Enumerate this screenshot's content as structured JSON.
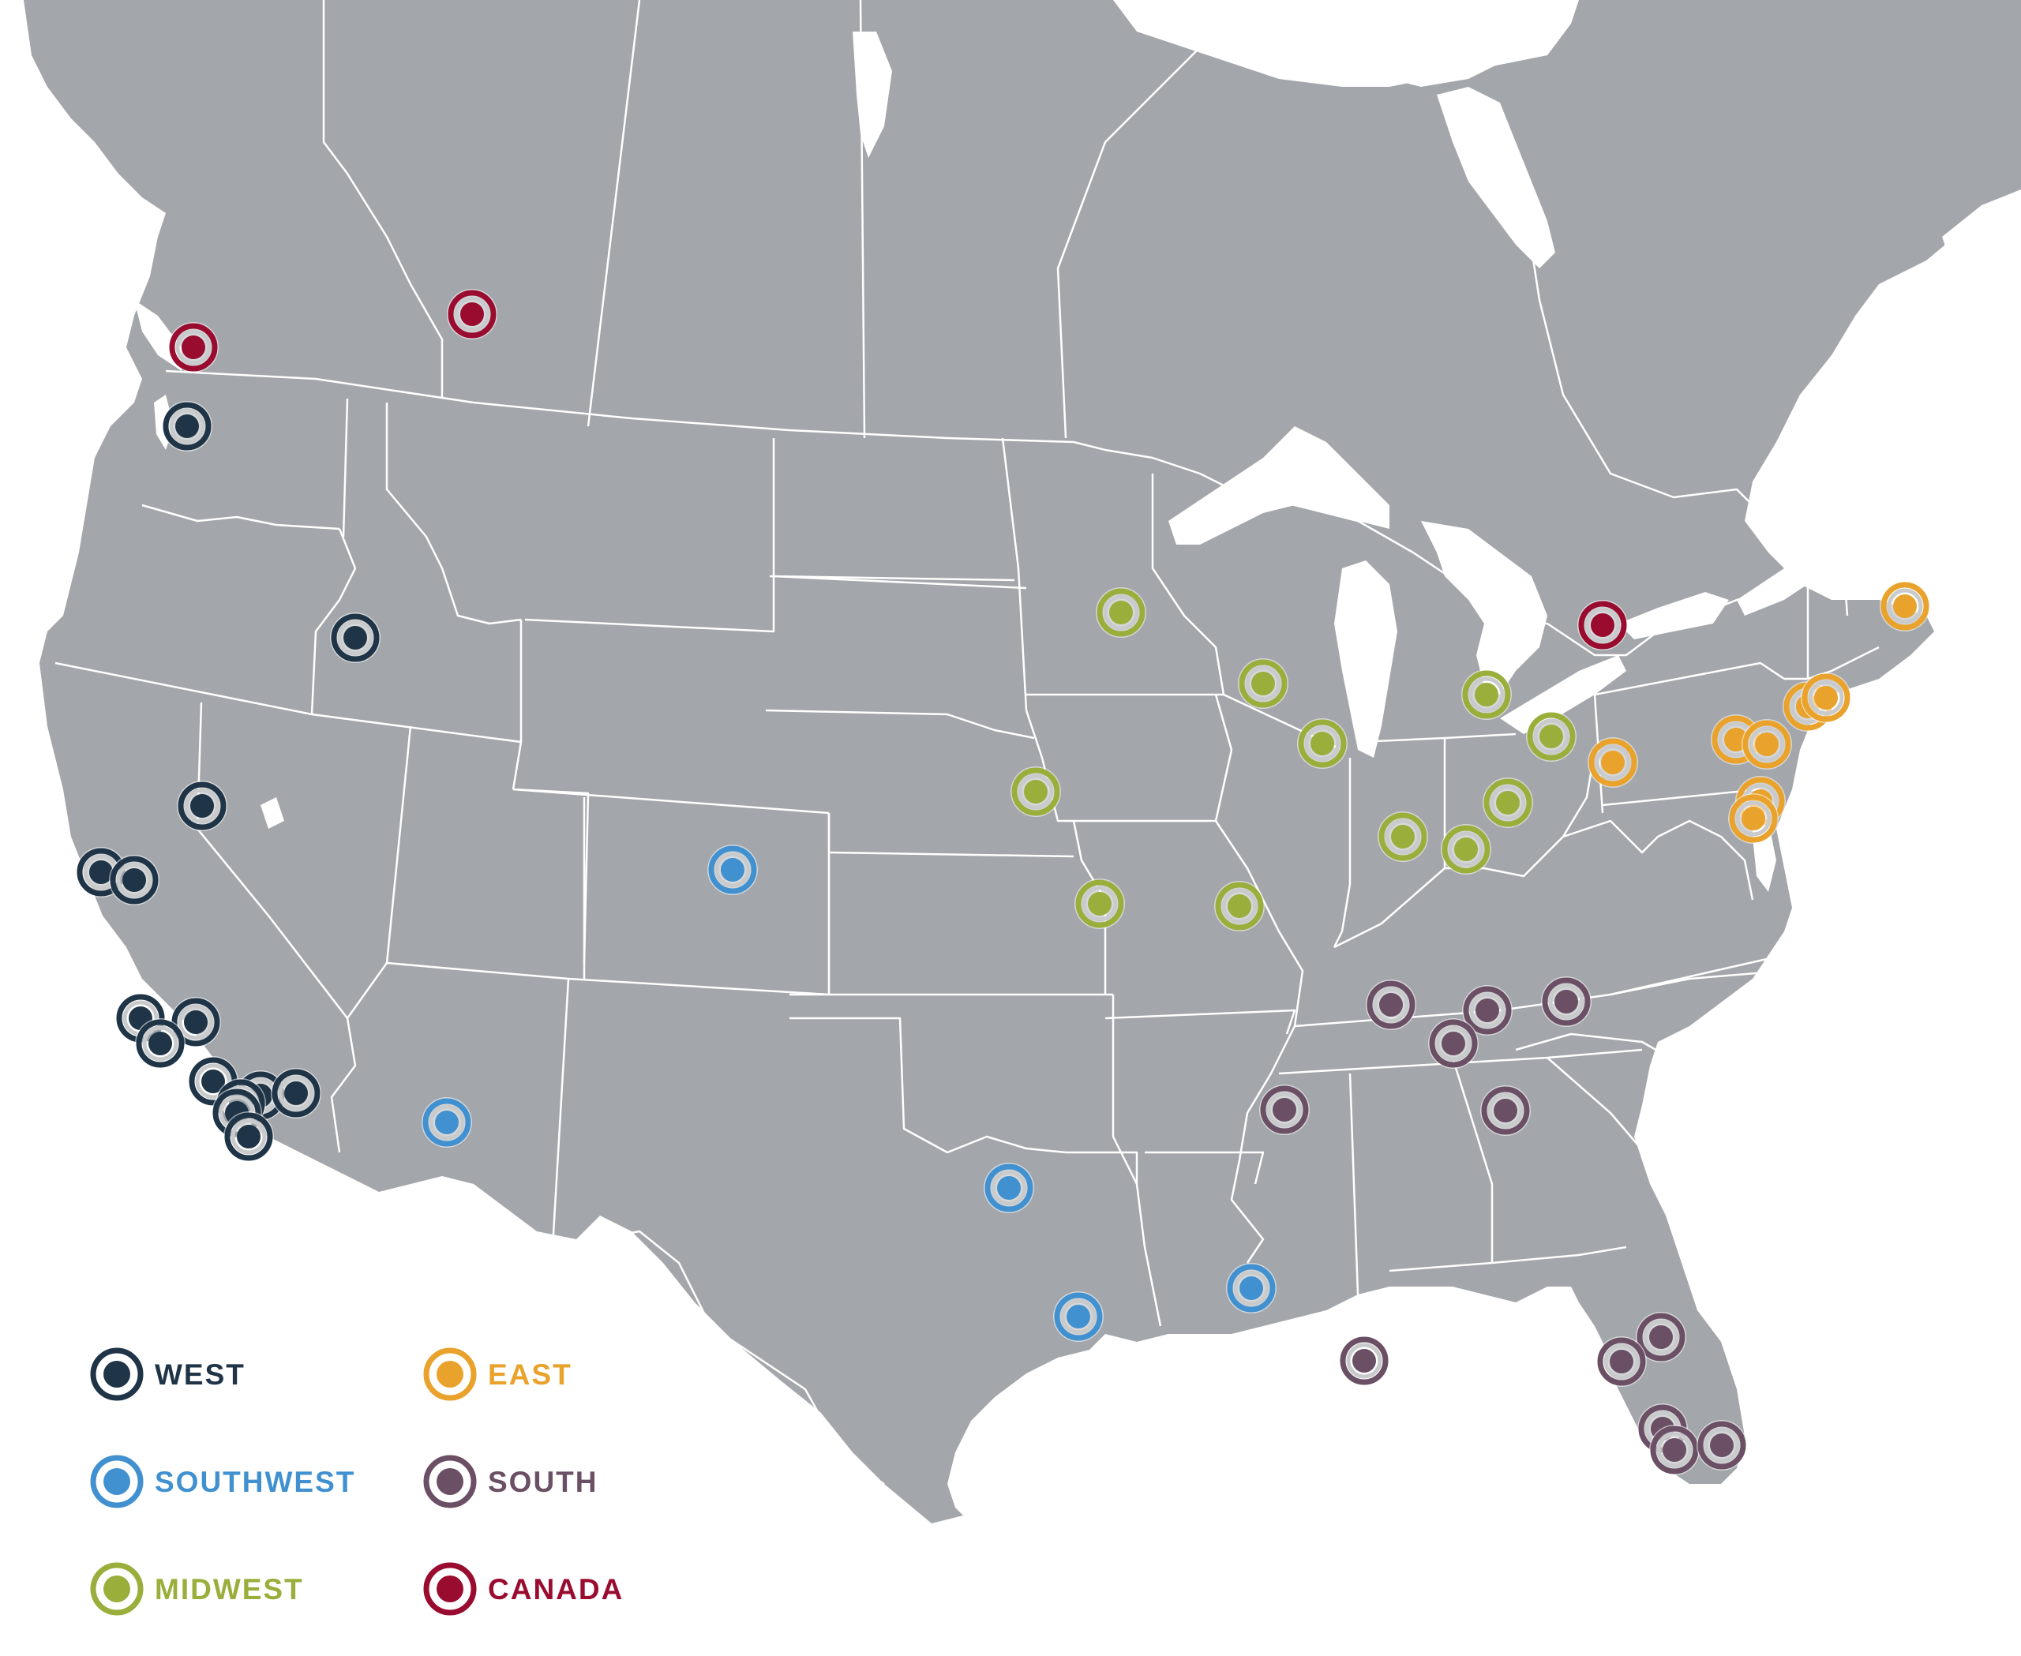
{
  "colors": {
    "land": "#a3a6aa",
    "water": "#ffffff",
    "border": "#ffffff"
  },
  "regions": [
    {
      "key": "west",
      "label": "WEST",
      "color": "#1f3446",
      "icon": "dark-navy-ring-marker-icon"
    },
    {
      "key": "east",
      "label": "EAST",
      "color": "#e9a22b",
      "icon": "orange-ring-marker-icon"
    },
    {
      "key": "southwest",
      "label": "SOUTHWEST",
      "color": "#4191d1",
      "icon": "blue-ring-marker-icon"
    },
    {
      "key": "south",
      "label": "SOUTH",
      "color": "#6b5065",
      "icon": "mauve-ring-marker-icon"
    },
    {
      "key": "midwest",
      "label": "MIDWEST",
      "color": "#9aae3c",
      "icon": "olive-ring-marker-icon"
    },
    {
      "key": "canada",
      "label": "CANADA",
      "color": "#9a0b30",
      "icon": "crimson-ring-marker-icon"
    }
  ],
  "location_counts": {
    "west": 17,
    "southwest": 6,
    "midwest": 13,
    "east": 10,
    "south": 12,
    "canada": 3
  }
}
